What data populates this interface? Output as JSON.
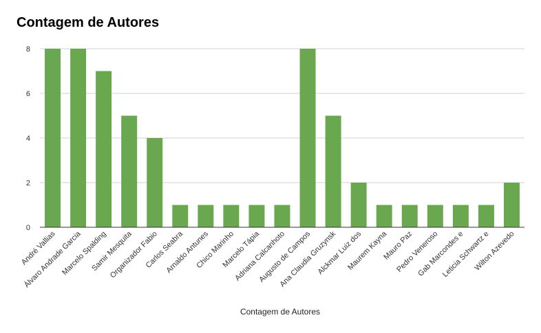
{
  "chart_data": {
    "type": "bar",
    "title": "Contagem de Autores",
    "xlabel": "Contagem de Autores",
    "ylabel": "",
    "categories": [
      "André Vallias",
      "Álvaro Andrade Garcia",
      "Marcelo Spalding",
      "Samir Mesquita",
      "Organizador Fabio",
      "Carlos Seabra",
      "Arnaldo Antunes",
      "Chico Marinho",
      "Marcelo Tápia",
      "Adriana Calcanhoto",
      "Augusto de Campos",
      "Ana Claudia Gruzynsk",
      "Alckmar Luiz dos",
      "Maurem Kayna",
      "Mauro Paz",
      "Pedro Veneroso",
      "Gab Marcondes e",
      "Leticia Schwartz e",
      "Wilton Azevedo"
    ],
    "values": [
      8,
      8,
      7,
      5,
      4,
      1,
      1,
      1,
      1,
      1,
      8,
      5,
      2,
      1,
      1,
      1,
      1,
      1,
      2
    ],
    "ylim": [
      0,
      8
    ],
    "yticks": [
      0,
      2,
      4,
      6,
      8
    ],
    "grid": true,
    "legend": "none",
    "bar_color": "#6aa84f"
  }
}
